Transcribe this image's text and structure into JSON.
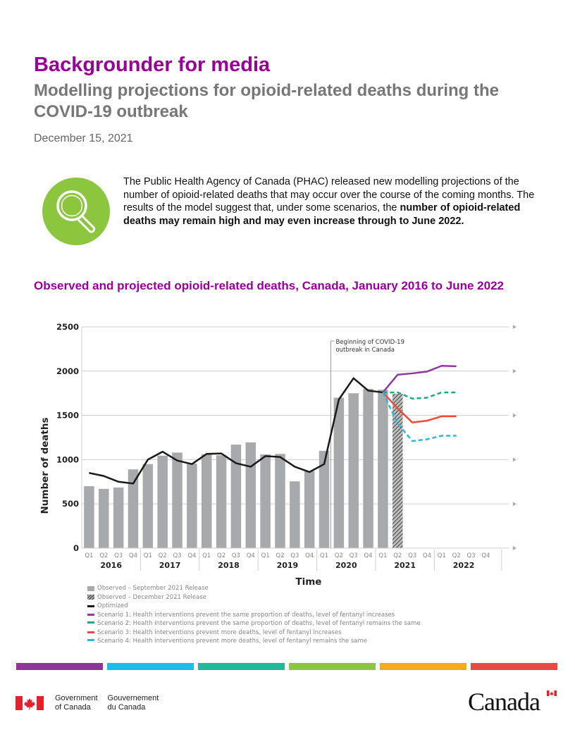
{
  "header": {
    "title": "Backgrounder for media",
    "subtitle": "Modelling projections for opioid-related deaths during the COVID-19 outbreak",
    "date": "December 15, 2021"
  },
  "intro": {
    "icon": "magnifying-glass-icon",
    "text_regular": "The Public Health Agency of Canada (PHAC) released new modelling projections of the number of opioid-related deaths that may occur over the course of the coming months. The results of the model suggest that, under some scenarios, the ",
    "text_bold": "number of opioid-related deaths may remain high and may even increase through to June 2022."
  },
  "chart_title": "Observed and projected opioid-related deaths, Canada, January 2016 to June 2022",
  "colors": {
    "title_purple": "#990099",
    "icon_green": "#8cc63f",
    "bar_gray": "#a7a9ac",
    "optimized": "#1a1a1a",
    "scenario1": "#8e3a9e",
    "scenario2": "#1fa884",
    "scenario3": "#ef4a35",
    "scenario4": "#27b9e6",
    "stripes": [
      "#923399",
      "#1ebcec",
      "#22b89a",
      "#8cc63f",
      "#f7aa1e",
      "#e84a3f"
    ]
  },
  "chart_data": {
    "type": "bar",
    "title": "Observed and projected opioid-related deaths, Canada, January 2016 to June 2022",
    "xlabel": "Time",
    "ylabel": "Number of deaths",
    "ylim": [
      0,
      2500
    ],
    "yticks": [
      0,
      500,
      1000,
      1500,
      2000,
      2500
    ],
    "grid": true,
    "quarters": [
      "Q1",
      "Q2",
      "Q3",
      "Q4",
      "Q1",
      "Q2",
      "Q3",
      "Q4",
      "Q1",
      "Q2",
      "Q3",
      "Q4",
      "Q1",
      "Q2",
      "Q3",
      "Q4",
      "Q1",
      "Q2",
      "Q3",
      "Q4",
      "Q1",
      "Q2",
      "Q3",
      "Q4",
      "Q1",
      "Q2",
      "Q3",
      "Q4"
    ],
    "years": [
      "2016",
      "2017",
      "2018",
      "2019",
      "2020",
      "2021",
      "2022"
    ],
    "annotation": "Beginning of COVID-19 outbreak in Canada",
    "annotation_after_index": 16,
    "legend_position": "bottom-left",
    "series": [
      {
        "name": "Observed – September 2021 Release",
        "kind": "bar",
        "values": [
          700,
          670,
          685,
          890,
          950,
          1045,
          1080,
          955,
          1060,
          1050,
          1170,
          1195,
          1060,
          1065,
          755,
          870,
          1100,
          1700,
          1750,
          1800,
          1790,
          null,
          null,
          null,
          null,
          null,
          null,
          null
        ]
      },
      {
        "name": "Observed – December 2021 Release",
        "kind": "hatched-bar",
        "values": [
          null,
          null,
          null,
          null,
          null,
          null,
          null,
          null,
          null,
          null,
          null,
          null,
          null,
          null,
          null,
          null,
          null,
          null,
          null,
          null,
          null,
          1745,
          null,
          null,
          null,
          null,
          null,
          null
        ]
      },
      {
        "name": "Optimized",
        "kind": "line",
        "values": [
          850,
          815,
          750,
          730,
          1000,
          1090,
          990,
          950,
          1065,
          1070,
          960,
          920,
          1040,
          1030,
          920,
          860,
          950,
          1680,
          1920,
          1780,
          1760,
          null,
          null,
          null,
          null,
          null,
          null,
          null
        ]
      },
      {
        "name": "Scenario 1: Health interventions prevent the same proportion of deaths, level of fentanyl increases",
        "kind": "line",
        "values": [
          null,
          null,
          null,
          null,
          null,
          null,
          null,
          null,
          null,
          null,
          null,
          null,
          null,
          null,
          null,
          null,
          null,
          null,
          null,
          null,
          1760,
          1960,
          1975,
          1995,
          2060,
          2055,
          null,
          null
        ]
      },
      {
        "name": "Scenario 2: Health interventions prevent the same proportion of deaths, level of fentanyl remains the same",
        "kind": "dashed-line",
        "values": [
          null,
          null,
          null,
          null,
          null,
          null,
          null,
          null,
          null,
          null,
          null,
          null,
          null,
          null,
          null,
          null,
          null,
          null,
          null,
          null,
          1760,
          1760,
          1690,
          1700,
          1760,
          1760,
          null,
          null
        ]
      },
      {
        "name": "Scenario 3: Health interventions prevent more deaths, level of fentanyl increases",
        "kind": "line",
        "values": [
          null,
          null,
          null,
          null,
          null,
          null,
          null,
          null,
          null,
          null,
          null,
          null,
          null,
          null,
          null,
          null,
          null,
          null,
          null,
          null,
          1760,
          1580,
          1420,
          1440,
          1490,
          1490,
          null,
          null
        ]
      },
      {
        "name": "Scenario 4: Health interventions prevent more deaths, level of fentanyl remains the same",
        "kind": "dashed-line",
        "values": [
          null,
          null,
          null,
          null,
          null,
          null,
          null,
          null,
          null,
          null,
          null,
          null,
          null,
          null,
          null,
          null,
          null,
          null,
          null,
          null,
          1760,
          1410,
          1210,
          1230,
          1270,
          1270,
          null,
          null
        ]
      }
    ]
  },
  "legend": [
    {
      "label": "Observed – September 2021 Release",
      "type": "bar"
    },
    {
      "label": "Observed – December 2021 Release",
      "type": "hatch"
    },
    {
      "label": "Optimized",
      "type": "line",
      "color": "#1a1a1a"
    },
    {
      "label": "Scenario 1: Health interventions prevent the same proportion of deaths, level of fentanyl increases",
      "type": "line",
      "color": "#8e3a9e"
    },
    {
      "label": "Scenario 2: Health interventions prevent the same proportion of deaths, level of fentanyl remains the same",
      "type": "dash",
      "color": "#1fa884"
    },
    {
      "label": "Scenario 3: Health interventions prevent more deaths, level of fentanyl increases",
      "type": "line",
      "color": "#ef4a35"
    },
    {
      "label": "Scenario 4: Health interventions prevent more deaths, level of fentanyl remains the same",
      "type": "dash",
      "color": "#27b9e6"
    }
  ],
  "footer": {
    "gov_en": "Government of Canada",
    "gov_en_line1": "Government",
    "gov_en_line2": "of Canada",
    "gov_fr_line1": "Gouvernement",
    "gov_fr_line2": "du Canada",
    "wordmark": "Canada"
  }
}
